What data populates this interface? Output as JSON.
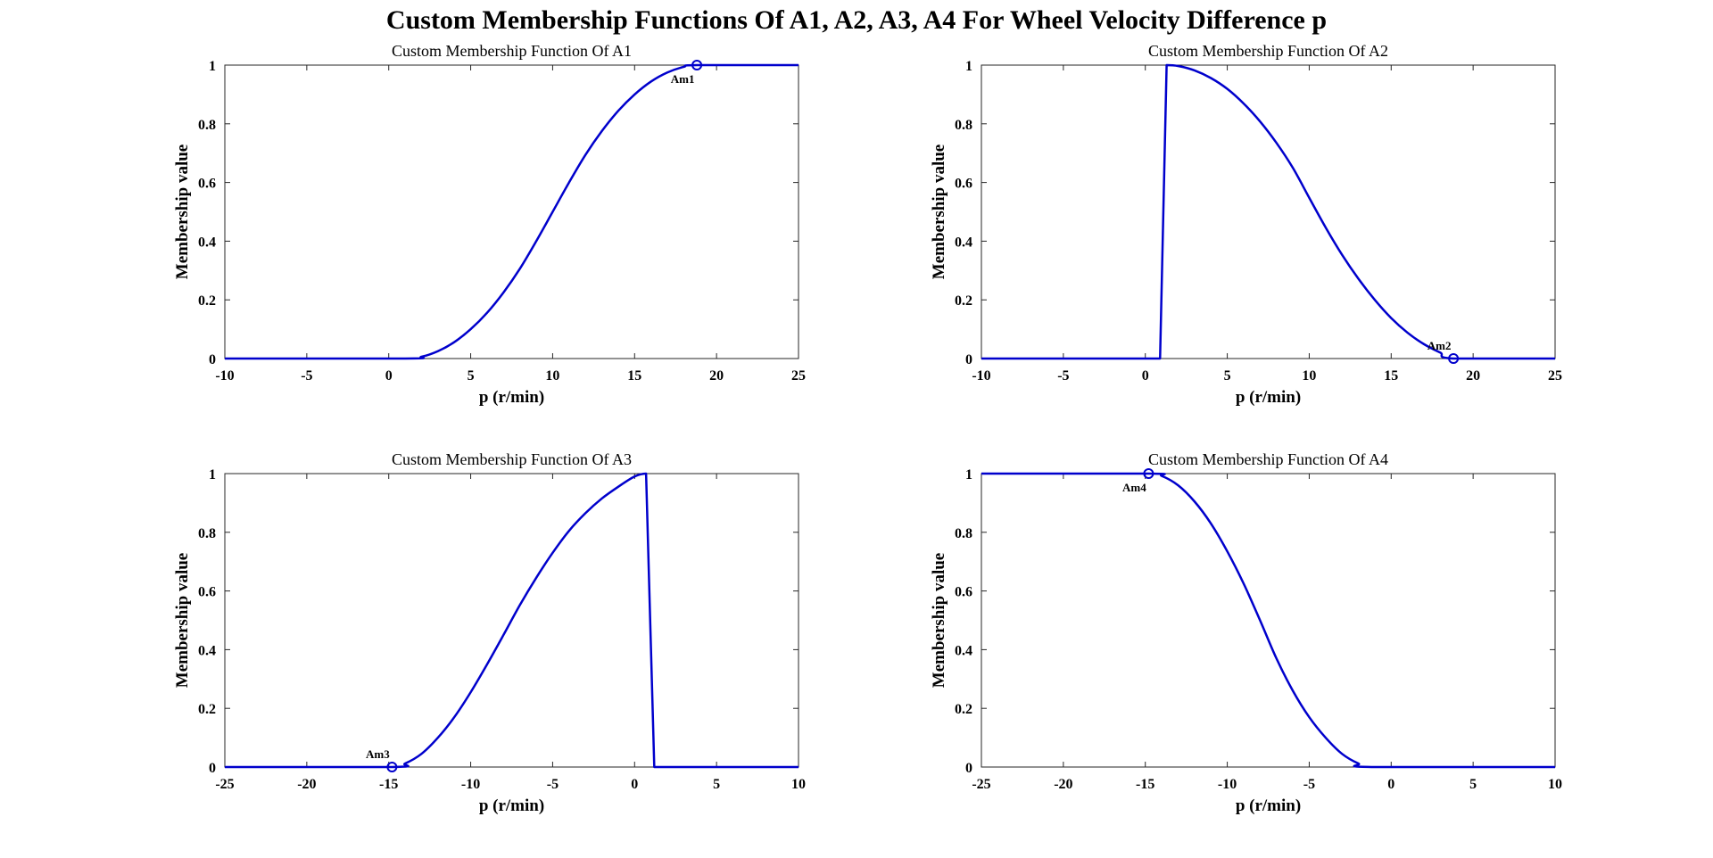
{
  "figure": {
    "title": "Custom Membership Functions Of A1, A2, A3, A4 For Wheel Velocity Difference p"
  },
  "chart_data": [
    {
      "type": "line",
      "title": "Custom Membership Function Of A1",
      "xlabel": "p (r/min)",
      "ylabel": "Membership value",
      "xlim": [
        -10,
        25
      ],
      "ylim": [
        0,
        1
      ],
      "xticks": [
        "-10",
        "-5",
        "0",
        "5",
        "10",
        "15",
        "20",
        "25"
      ],
      "yticks": [
        "0",
        "0.2",
        "0.4",
        "0.6",
        "0.8",
        "1"
      ],
      "grid": false,
      "color": "#0000cc",
      "series": [
        {
          "x": [
            -10,
            1,
            2,
            3,
            4,
            5,
            6,
            7,
            8,
            9,
            10,
            11,
            12,
            13,
            14,
            15,
            16,
            17,
            18,
            18.8,
            25
          ],
          "y": [
            0,
            0,
            0.006,
            0.025,
            0.056,
            0.1,
            0.156,
            0.225,
            0.306,
            0.4,
            0.5,
            0.6,
            0.694,
            0.775,
            0.844,
            0.9,
            0.944,
            0.975,
            0.994,
            1,
            1
          ]
        }
      ],
      "annotations": [
        {
          "label": "Am1",
          "x": 18.8,
          "y": 1,
          "marker": "circle",
          "label_position": "below"
        }
      ]
    },
    {
      "type": "line",
      "title": "Custom Membership Function Of A2",
      "xlabel": "p (r/min)",
      "ylabel": "Membership value",
      "xlim": [
        -10,
        25
      ],
      "ylim": [
        0,
        1
      ],
      "xticks": [
        "-10",
        "-5",
        "0",
        "5",
        "10",
        "15",
        "20",
        "25"
      ],
      "yticks": [
        "0",
        "0.2",
        "0.4",
        "0.6",
        "0.8",
        "1"
      ],
      "grid": false,
      "color": "#0000cc",
      "series": [
        {
          "x": [
            -10,
            0.9,
            1.3,
            2,
            3,
            4,
            5,
            6,
            7,
            8,
            9,
            10,
            11,
            12,
            13,
            14,
            15,
            16,
            17,
            18,
            18.8,
            25
          ],
          "y": [
            0,
            0,
            1,
            0.997,
            0.982,
            0.956,
            0.919,
            0.869,
            0.808,
            0.735,
            0.65,
            0.548,
            0.447,
            0.354,
            0.272,
            0.2,
            0.138,
            0.088,
            0.049,
            0.02,
            0,
            0
          ]
        }
      ],
      "annotations": [
        {
          "label": "Am2",
          "x": 18.8,
          "y": 0,
          "marker": "circle",
          "label_position": "above"
        }
      ]
    },
    {
      "type": "line",
      "title": "Custom Membership Function Of A3",
      "xlabel": "p (r/min)",
      "ylabel": "Membership value",
      "xlim": [
        -25,
        10
      ],
      "ylim": [
        0,
        1
      ],
      "xticks": [
        "-25",
        "-20",
        "-15",
        "-10",
        "-5",
        "0",
        "5",
        "10"
      ],
      "yticks": [
        "0",
        "0.2",
        "0.4",
        "0.6",
        "0.8",
        "1"
      ],
      "grid": false,
      "color": "#0000cc",
      "series": [
        {
          "x": [
            -25,
            -14.8,
            -14,
            -13,
            -12,
            -11,
            -10,
            -9,
            -8,
            -7,
            -6,
            -5,
            -4,
            -3,
            -2,
            -1,
            0,
            0.7,
            1.2,
            10
          ],
          "y": [
            0,
            0,
            0.012,
            0.045,
            0.1,
            0.17,
            0.255,
            0.35,
            0.45,
            0.552,
            0.645,
            0.73,
            0.805,
            0.865,
            0.915,
            0.955,
            0.99,
            1,
            0,
            0
          ]
        }
      ],
      "annotations": [
        {
          "label": "Am3",
          "x": -14.8,
          "y": 0,
          "marker": "circle",
          "label_position": "above"
        }
      ]
    },
    {
      "type": "line",
      "title": "Custom Membership Function Of A4",
      "xlabel": "p (r/min)",
      "ylabel": "Membership value",
      "xlim": [
        -25,
        10
      ],
      "ylim": [
        0,
        1
      ],
      "xticks": [
        "-25",
        "-20",
        "-15",
        "-10",
        "-5",
        "0",
        "5",
        "10"
      ],
      "yticks": [
        "0",
        "0.2",
        "0.4",
        "0.6",
        "0.8",
        "1"
      ],
      "grid": false,
      "color": "#0000cc",
      "series": [
        {
          "x": [
            -25,
            -14.8,
            -14,
            -13,
            -12,
            -11,
            -10,
            -9,
            -8,
            -7,
            -6,
            -5,
            -4,
            -3,
            -2,
            -1.2,
            10
          ],
          "y": [
            1,
            1,
            0.992,
            0.96,
            0.905,
            0.83,
            0.735,
            0.625,
            0.5,
            0.37,
            0.26,
            0.17,
            0.1,
            0.045,
            0.012,
            0,
            0
          ]
        }
      ],
      "annotations": [
        {
          "label": "Am4",
          "x": -14.8,
          "y": 1,
          "marker": "circle",
          "label_position": "below"
        }
      ]
    }
  ]
}
